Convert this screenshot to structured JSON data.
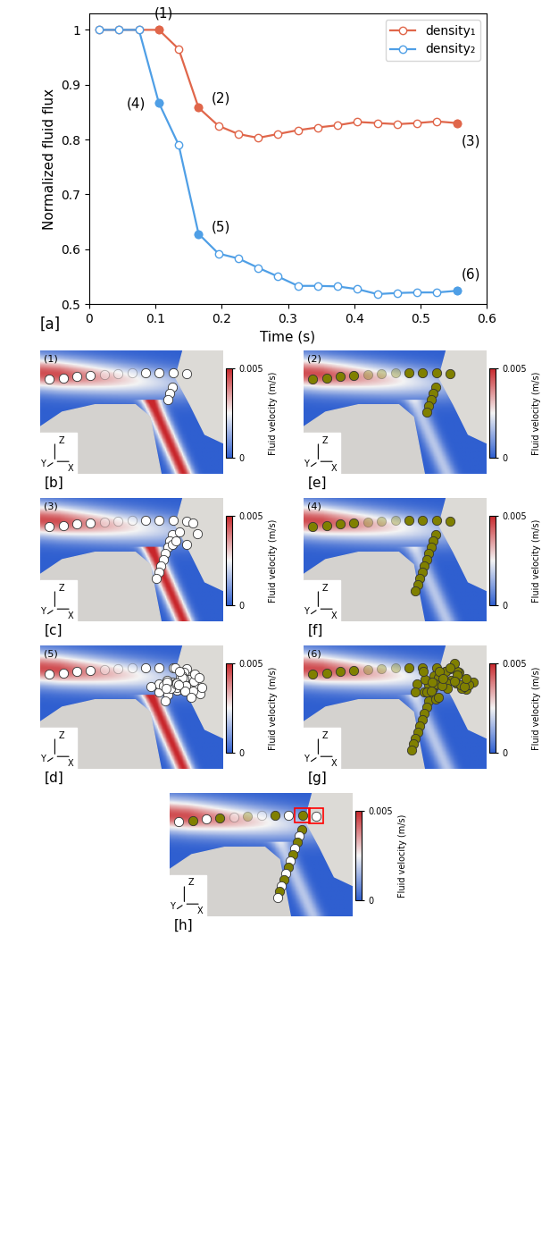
{
  "chart_data": {
    "type": "line",
    "label": "[a]",
    "xlabel": "Time (s)",
    "ylabel": "Normalized fluid flux",
    "x": [
      0.015,
      0.045,
      0.075,
      0.105,
      0.135,
      0.165,
      0.195,
      0.225,
      0.255,
      0.285,
      0.315,
      0.345,
      0.375,
      0.405,
      0.435,
      0.465,
      0.495,
      0.525,
      0.555
    ],
    "series": [
      {
        "name": "density₁",
        "color": "#e0664a",
        "marker": "o",
        "values": [
          1,
          1,
          1,
          1,
          0.965,
          0.858,
          0.825,
          0.81,
          0.803,
          0.81,
          0.817,
          0.822,
          0.826,
          0.832,
          0.83,
          0.828,
          0.83,
          0.833,
          0.83
        ]
      },
      {
        "name": "density₂",
        "color": "#4f9fe6",
        "marker": "o",
        "values": [
          1,
          1,
          1,
          0.867,
          0.79,
          0.628,
          0.592,
          0.583,
          0.566,
          0.55,
          0.533,
          0.533,
          0.532,
          0.527,
          0.518,
          0.52,
          0.521,
          0.521,
          0.524
        ]
      }
    ],
    "annotations": [
      {
        "text": "(1)",
        "series": "density₁",
        "x": 0.105
      },
      {
        "text": "(2)",
        "series": "density₁",
        "x": 0.165
      },
      {
        "text": "(3)",
        "series": "density₁",
        "x": 0.555
      },
      {
        "text": "(4)",
        "series": "density₂",
        "x": 0.105
      },
      {
        "text": "(5)",
        "series": "density₂",
        "x": 0.165
      },
      {
        "text": "(6)",
        "series": "density₂",
        "x": 0.555
      }
    ],
    "xlim": [
      0,
      0.6
    ],
    "xticks": [
      0,
      0.1,
      0.2,
      0.3,
      0.4,
      0.5,
      0.6
    ],
    "ylim": [
      0.5,
      1.03
    ],
    "yticks": [
      0.5,
      0.6,
      0.7,
      0.8,
      0.9,
      1
    ],
    "grid": false,
    "legend": "upper right"
  },
  "panels": [
    {
      "label": "[b]",
      "state": "(1)",
      "particle_color": "white"
    },
    {
      "label": "[e]",
      "state": "(2)",
      "particle_color": "olive"
    },
    {
      "label": "[c]",
      "state": "(3)",
      "particle_color": "white"
    },
    {
      "label": "[f]",
      "state": "(4)",
      "particle_color": "olive"
    },
    {
      "label": "[d]",
      "state": "(5)",
      "particle_color": "white"
    },
    {
      "label": "[g]",
      "state": "(6)",
      "particle_color": "olive"
    },
    {
      "label": "[h]",
      "state": null,
      "particle_color": [
        "white",
        "olive"
      ]
    }
  ],
  "colorbar": {
    "label": "Fluid velocity (m/s)",
    "range": [
      0,
      0.005
    ],
    "ticks": [
      0,
      0.005
    ]
  },
  "axis_labels": [
    "Z",
    "Y",
    "X"
  ]
}
